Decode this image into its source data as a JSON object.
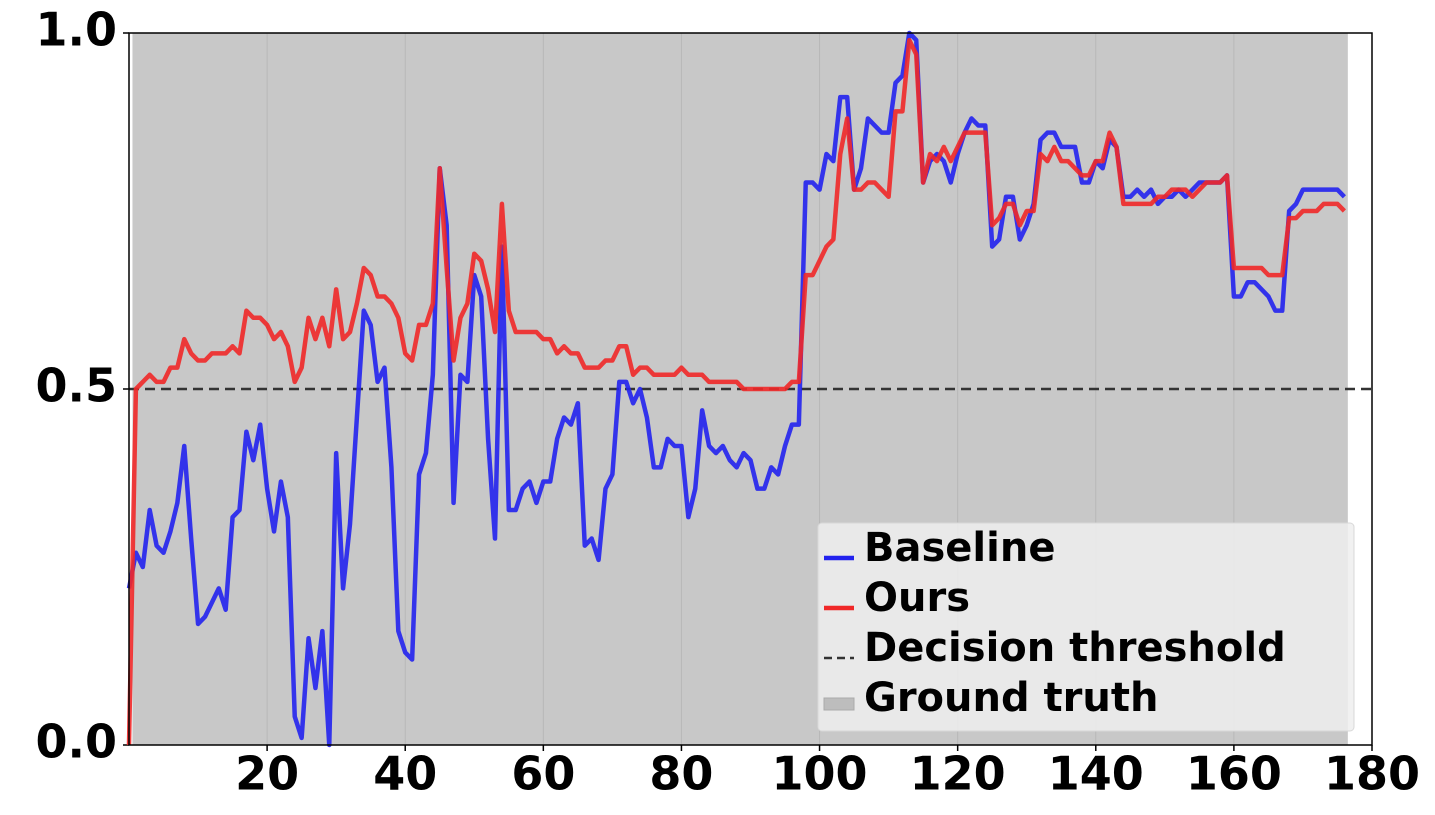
{
  "chart_data": {
    "type": "line",
    "xlim": [
      0,
      180
    ],
    "ylim": [
      0,
      1
    ],
    "xticks": [
      20,
      40,
      60,
      80,
      100,
      120,
      140,
      160,
      180
    ],
    "yticks": [
      {
        "value": 0,
        "label": "0.0"
      },
      {
        "value": 0.5,
        "label": "0.5"
      },
      {
        "value": 1,
        "label": "1.0"
      }
    ],
    "grid": true,
    "legend": "lower right",
    "x": [
      0,
      1,
      2,
      3,
      4,
      5,
      6,
      7,
      8,
      9,
      10,
      11,
      12,
      13,
      14,
      15,
      16,
      17,
      18,
      19,
      20,
      21,
      22,
      23,
      24,
      25,
      26,
      27,
      28,
      29,
      30,
      31,
      32,
      33,
      34,
      35,
      36,
      37,
      38,
      39,
      40,
      41,
      42,
      43,
      44,
      45,
      46,
      47,
      48,
      49,
      50,
      51,
      52,
      53,
      54,
      55,
      56,
      57,
      58,
      59,
      60,
      61,
      62,
      63,
      64,
      65,
      66,
      67,
      68,
      69,
      70,
      71,
      72,
      73,
      74,
      75,
      76,
      77,
      78,
      79,
      80,
      81,
      82,
      83,
      84,
      85,
      86,
      87,
      88,
      89,
      90,
      91,
      92,
      93,
      94,
      95,
      96,
      97,
      98,
      99,
      100,
      101,
      102,
      103,
      104,
      105,
      106,
      107,
      108,
      109,
      110,
      111,
      112,
      113,
      114,
      115,
      116,
      117,
      118,
      119,
      120,
      121,
      122,
      123,
      124,
      125,
      126,
      127,
      128,
      129,
      130,
      131,
      132,
      133,
      134,
      135,
      136,
      137,
      138,
      139,
      140,
      141,
      142,
      143,
      144,
      145,
      146,
      147,
      148,
      149,
      150,
      151,
      152,
      153,
      154,
      155,
      156,
      157,
      158,
      159,
      160,
      161,
      162,
      163,
      164,
      165,
      166,
      167,
      168,
      169,
      170,
      171,
      172,
      173,
      174,
      175,
      176
    ],
    "series": [
      {
        "name": "Baseline",
        "color": "#2222ee",
        "values": [
          0.22,
          0.27,
          0.25,
          0.33,
          0.28,
          0.27,
          0.3,
          0.34,
          0.42,
          0.29,
          0.17,
          0.18,
          0.2,
          0.22,
          0.19,
          0.32,
          0.33,
          0.44,
          0.4,
          0.45,
          0.36,
          0.3,
          0.37,
          0.32,
          0.04,
          0.01,
          0.15,
          0.08,
          0.16,
          0.0,
          0.41,
          0.22,
          0.31,
          0.46,
          0.61,
          0.59,
          0.51,
          0.53,
          0.39,
          0.16,
          0.13,
          0.12,
          0.38,
          0.41,
          0.52,
          0.81,
          0.73,
          0.34,
          0.52,
          0.51,
          0.66,
          0.63,
          0.43,
          0.29,
          0.7,
          0.33,
          0.33,
          0.36,
          0.37,
          0.34,
          0.37,
          0.37,
          0.43,
          0.46,
          0.45,
          0.48,
          0.28,
          0.29,
          0.26,
          0.36,
          0.38,
          0.51,
          0.51,
          0.48,
          0.5,
          0.46,
          0.39,
          0.39,
          0.43,
          0.42,
          0.42,
          0.32,
          0.36,
          0.47,
          0.42,
          0.41,
          0.42,
          0.4,
          0.39,
          0.41,
          0.4,
          0.36,
          0.36,
          0.39,
          0.38,
          0.42,
          0.45,
          0.45,
          0.79,
          0.79,
          0.78,
          0.83,
          0.82,
          0.91,
          0.91,
          0.78,
          0.81,
          0.88,
          0.87,
          0.86,
          0.86,
          0.93,
          0.94,
          1.0,
          0.99,
          0.79,
          0.82,
          0.83,
          0.82,
          0.79,
          0.83,
          0.86,
          0.88,
          0.87,
          0.87,
          0.7,
          0.71,
          0.77,
          0.77,
          0.71,
          0.73,
          0.76,
          0.85,
          0.86,
          0.86,
          0.84,
          0.84,
          0.84,
          0.79,
          0.79,
          0.82,
          0.81,
          0.85,
          0.84,
          0.77,
          0.77,
          0.78,
          0.77,
          0.78,
          0.76,
          0.77,
          0.77,
          0.78,
          0.77,
          0.78,
          0.79,
          0.79,
          0.79,
          0.79,
          0.8,
          0.63,
          0.63,
          0.65,
          0.65,
          0.64,
          0.63,
          0.61,
          0.61,
          0.75,
          0.76,
          0.78,
          0.78,
          0.78,
          0.78,
          0.78,
          0.78,
          0.77
        ]
      },
      {
        "name": "Ours",
        "color": "#f02828",
        "values": [
          0.0,
          0.5,
          0.51,
          0.52,
          0.51,
          0.51,
          0.53,
          0.53,
          0.57,
          0.55,
          0.54,
          0.54,
          0.55,
          0.55,
          0.55,
          0.56,
          0.55,
          0.61,
          0.6,
          0.6,
          0.59,
          0.57,
          0.58,
          0.56,
          0.51,
          0.53,
          0.6,
          0.57,
          0.6,
          0.56,
          0.64,
          0.57,
          0.58,
          0.62,
          0.67,
          0.66,
          0.63,
          0.63,
          0.62,
          0.6,
          0.55,
          0.54,
          0.59,
          0.59,
          0.62,
          0.81,
          0.67,
          0.54,
          0.6,
          0.62,
          0.69,
          0.68,
          0.64,
          0.58,
          0.76,
          0.61,
          0.58,
          0.58,
          0.58,
          0.58,
          0.57,
          0.57,
          0.55,
          0.56,
          0.55,
          0.55,
          0.53,
          0.53,
          0.53,
          0.54,
          0.54,
          0.56,
          0.56,
          0.52,
          0.53,
          0.53,
          0.52,
          0.52,
          0.52,
          0.52,
          0.53,
          0.52,
          0.52,
          0.52,
          0.51,
          0.51,
          0.51,
          0.51,
          0.51,
          0.5,
          0.5,
          0.5,
          0.5,
          0.5,
          0.5,
          0.5,
          0.51,
          0.51,
          0.66,
          0.66,
          0.68,
          0.7,
          0.71,
          0.83,
          0.88,
          0.78,
          0.78,
          0.79,
          0.79,
          0.78,
          0.77,
          0.89,
          0.89,
          0.99,
          0.97,
          0.79,
          0.83,
          0.82,
          0.84,
          0.82,
          0.84,
          0.86,
          0.86,
          0.86,
          0.86,
          0.73,
          0.74,
          0.76,
          0.76,
          0.73,
          0.75,
          0.75,
          0.83,
          0.82,
          0.84,
          0.82,
          0.82,
          0.81,
          0.8,
          0.8,
          0.82,
          0.82,
          0.86,
          0.84,
          0.76,
          0.76,
          0.76,
          0.76,
          0.76,
          0.77,
          0.77,
          0.78,
          0.78,
          0.78,
          0.77,
          0.78,
          0.79,
          0.79,
          0.79,
          0.8,
          0.67,
          0.67,
          0.67,
          0.67,
          0.67,
          0.66,
          0.66,
          0.66,
          0.74,
          0.74,
          0.75,
          0.75,
          0.75,
          0.76,
          0.76,
          0.76,
          0.75
        ]
      }
    ],
    "threshold": {
      "name": "Decision threshold",
      "value": 0.5,
      "color": "#333333"
    },
    "ground_truth": {
      "name": "Ground truth",
      "x": [
        0.5,
        176.5
      ],
      "color": "#c8c8c8"
    }
  }
}
